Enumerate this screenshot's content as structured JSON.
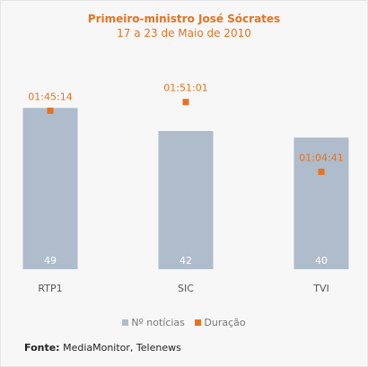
{
  "chart_data": {
    "type": "bar",
    "title": "Primeiro-ministro José Sócrates",
    "subtitle": "17 a 23 de Maio de 2010",
    "categories": [
      "RTP1",
      "SIC",
      "TVI"
    ],
    "series": [
      {
        "name": "Nº notícias",
        "values": [
          49,
          42,
          40
        ],
        "color": "#aebccb",
        "labels": [
          "49",
          "42",
          "40"
        ]
      },
      {
        "name": "Duração",
        "values": [
          6314,
          6661,
          3881
        ],
        "labels": [
          "01:45:14",
          "01:51:01",
          "01:04:41"
        ],
        "color": "#e8731f"
      }
    ],
    "ylim": [
      0,
      60
    ],
    "duration_lim": [
      0,
      7866
    ],
    "grid": false,
    "legend_position": "bottom"
  },
  "source": {
    "label": "Fonte:",
    "text": "MediaMonitor, Telenews"
  }
}
